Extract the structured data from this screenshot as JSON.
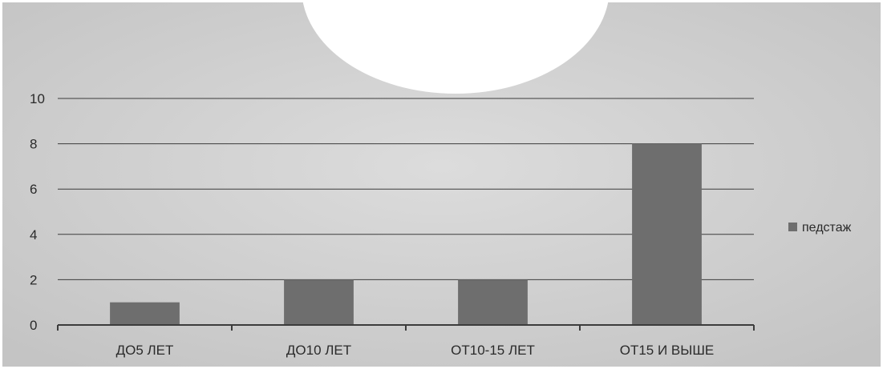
{
  "chart_data": {
    "type": "bar",
    "categories": [
      "ДО5 ЛЕТ",
      "ДО10 ЛЕТ",
      "ОТ10-15 ЛЕТ",
      "ОТ15 И ВЫШЕ"
    ],
    "series": [
      {
        "name": "педстаж",
        "values": [
          1,
          2,
          2,
          8
        ]
      }
    ],
    "title": "",
    "xlabel": "",
    "ylabel": "",
    "ylim": [
      0,
      10
    ],
    "yticks": [
      0,
      2,
      4,
      6,
      8,
      10
    ],
    "grid": true,
    "legend_position": "right",
    "colors": {
      "background": "#d2d2d2",
      "bar": "#6e6e6e",
      "grid": "#3c3c3c",
      "text": "#2a2a2a"
    }
  }
}
